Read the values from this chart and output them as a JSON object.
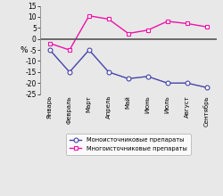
{
  "months": [
    "Январь",
    "Февраль",
    "Март",
    "Апрель",
    "Май",
    "Июнь",
    "Июль",
    "Август",
    "Сентябрь"
  ],
  "mono": [
    -5,
    -15,
    -5,
    -15,
    -18,
    -17,
    -20,
    -20,
    -22
  ],
  "multi": [
    -2,
    -5,
    10.5,
    9,
    2.5,
    4,
    8,
    7,
    5.5
  ],
  "mono_color": "#4444aa",
  "multi_color": "#ee11aa",
  "ylabel": "%",
  "ylim": [
    -25,
    15
  ],
  "yticks": [
    -25,
    -20,
    -15,
    -10,
    -5,
    0,
    5,
    10,
    15
  ],
  "legend_mono": "Моноисточниковые препараты",
  "legend_multi": "Многоисточниковые препараты",
  "bg_color": "#e8e8e8"
}
